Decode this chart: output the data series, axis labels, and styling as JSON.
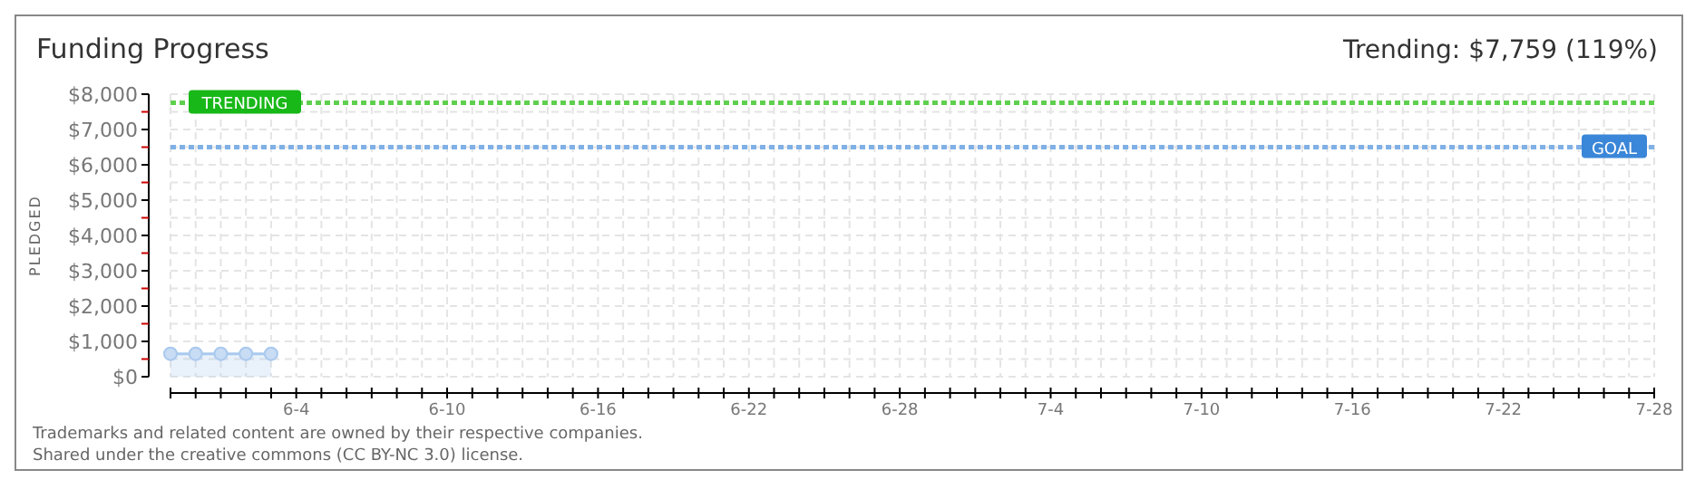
{
  "chart_data": {
    "type": "area",
    "title": "Funding Progress",
    "subtitle": "Trending: $7,759 (119%)",
    "ylabel": "PLEDGED",
    "x": [
      "--05-30",
      "--05-31",
      "--06-01",
      "--06-02",
      "--06-03"
    ],
    "series": [
      {
        "color": "#a9c9ee",
        "values": [
          650,
          650,
          650,
          650,
          650
        ]
      }
    ],
    "marker": "circle",
    "grid": true,
    "xlim": [
      "--05-30",
      "--07-28"
    ],
    "xticks": [
      {
        "value": "--05-30",
        "label": null
      },
      {
        "value": "--05-31",
        "label": null
      },
      {
        "value": "--06-01",
        "label": null
      },
      {
        "value": "--06-02",
        "label": null
      },
      {
        "value": "--06-03",
        "label": null
      },
      {
        "value": "--06-04",
        "label": "6-4"
      },
      {
        "value": "--06-05",
        "label": null
      },
      {
        "value": "--06-06",
        "label": null
      },
      {
        "value": "--06-07",
        "label": null
      },
      {
        "value": "--06-08",
        "label": null
      },
      {
        "value": "--06-09",
        "label": null
      },
      {
        "value": "--06-10",
        "label": "6-10"
      },
      {
        "value": "--06-11",
        "label": null
      },
      {
        "value": "--06-12",
        "label": null
      },
      {
        "value": "--06-13",
        "label": null
      },
      {
        "value": "--06-14",
        "label": null
      },
      {
        "value": "--06-15",
        "label": null
      },
      {
        "value": "--06-16",
        "label": "6-16"
      },
      {
        "value": "--06-17",
        "label": null
      },
      {
        "value": "--06-18",
        "label": null
      },
      {
        "value": "--06-19",
        "label": null
      },
      {
        "value": "--06-20",
        "label": null
      },
      {
        "value": "--06-21",
        "label": null
      },
      {
        "value": "--06-22",
        "label": "6-22"
      },
      {
        "value": "--06-23",
        "label": null
      },
      {
        "value": "--06-24",
        "label": null
      },
      {
        "value": "--06-25",
        "label": null
      },
      {
        "value": "--06-26",
        "label": null
      },
      {
        "value": "--06-27",
        "label": null
      },
      {
        "value": "--06-28",
        "label": "6-28"
      },
      {
        "value": "--06-29",
        "label": null
      },
      {
        "value": "--06-30",
        "label": null
      },
      {
        "value": "--07-01",
        "label": null
      },
      {
        "value": "--07-02",
        "label": null
      },
      {
        "value": "--07-03",
        "label": null
      },
      {
        "value": "--07-04",
        "label": "7-4"
      },
      {
        "value": "--07-05",
        "label": null
      },
      {
        "value": "--07-06",
        "label": null
      },
      {
        "value": "--07-07",
        "label": null
      },
      {
        "value": "--07-08",
        "label": null
      },
      {
        "value": "--07-09",
        "label": null
      },
      {
        "value": "--07-10",
        "label": "7-10"
      },
      {
        "value": "--07-11",
        "label": null
      },
      {
        "value": "--07-12",
        "label": null
      },
      {
        "value": "--07-13",
        "label": null
      },
      {
        "value": "--07-14",
        "label": null
      },
      {
        "value": "--07-15",
        "label": null
      },
      {
        "value": "--07-16",
        "label": "7-16"
      },
      {
        "value": "--07-17",
        "label": null
      },
      {
        "value": "--07-18",
        "label": null
      },
      {
        "value": "--07-19",
        "label": null
      },
      {
        "value": "--07-20",
        "label": null
      },
      {
        "value": "--07-21",
        "label": null
      },
      {
        "value": "--07-22",
        "label": "7-22"
      },
      {
        "value": "--07-23",
        "label": null
      },
      {
        "value": "--07-24",
        "label": null
      },
      {
        "value": "--07-25",
        "label": null
      },
      {
        "value": "--07-26",
        "label": null
      },
      {
        "value": "--07-27",
        "label": null
      },
      {
        "value": "--07-28",
        "label": "7-28"
      }
    ],
    "ylim": [
      0,
      8000
    ],
    "yticks": [
      {
        "value": 0,
        "label": "$0"
      },
      {
        "value": 500,
        "label": null
      },
      {
        "value": 1000,
        "label": "$1,000"
      },
      {
        "value": 1500,
        "label": null
      },
      {
        "value": 2000,
        "label": "$2,000"
      },
      {
        "value": 2500,
        "label": null
      },
      {
        "value": 3000,
        "label": "$3,000"
      },
      {
        "value": 3500,
        "label": null
      },
      {
        "value": 4000,
        "label": "$4,000"
      },
      {
        "value": 4500,
        "label": null
      },
      {
        "value": 5000,
        "label": "$5,000"
      },
      {
        "value": 5500,
        "label": null
      },
      {
        "value": 6000,
        "label": "$6,000"
      },
      {
        "value": 6500,
        "label": null
      },
      {
        "value": 7000,
        "label": "$7,000"
      },
      {
        "value": 7500,
        "label": null
      },
      {
        "value": 8000,
        "label": "$8,000"
      }
    ],
    "ref_lines": [
      {
        "axis": "y",
        "value": 7759,
        "label": "TRENDING",
        "color": "#5fcf4f",
        "line_style": "dotted"
      },
      {
        "axis": "y",
        "value": 6500,
        "label": "GOAL",
        "color": "#7fb0e6",
        "line_style": "dotted"
      }
    ],
    "annotations": [
      "Trademarks and related content are owned by their respective companies.",
      "Shared under the creative commons (CC BY-NC 3.0) license."
    ]
  }
}
